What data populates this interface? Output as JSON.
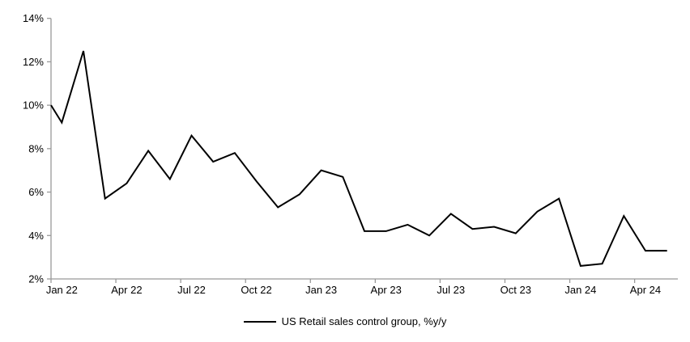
{
  "chart_data": {
    "type": "line",
    "title": "",
    "legend": "US Retail sales control group, %y/y",
    "legend_position": "bottom-center",
    "grid": false,
    "line_color": "#000000",
    "line_width": 2,
    "axis_color": "#999999",
    "text_color": "#000000",
    "background_color": "#ffffff",
    "ylim": [
      2,
      14
    ],
    "ytick_step": 2,
    "ytick_labels": [
      "2%",
      "4%",
      "6%",
      "8%",
      "10%",
      "12%",
      "14%"
    ],
    "x_label_interval": 3,
    "x_labels_shown": [
      "Jan 22",
      "Apr 22",
      "Jul 22",
      "Oct 22",
      "Jan 23",
      "Apr 23",
      "Jul 23",
      "Oct 23",
      "Jan 24",
      "Apr 24"
    ],
    "categories": [
      "Jan 22",
      "Feb 22",
      "Mar 22",
      "Apr 22",
      "May 22",
      "Jun 22",
      "Jul 22",
      "Aug 22",
      "Sep 22",
      "Oct 22",
      "Nov 22",
      "Dec 22",
      "Jan 23",
      "Feb 23",
      "Mar 23",
      "Apr 23",
      "May 23",
      "Jun 23",
      "Jul 23",
      "Aug 23",
      "Sep 23",
      "Oct 23",
      "Nov 23",
      "Dec 23",
      "Jan 24",
      "Feb 24",
      "Mar 24",
      "Apr 24",
      "May 24"
    ],
    "values": [
      9.2,
      12.5,
      5.7,
      6.4,
      7.9,
      6.6,
      8.6,
      7.4,
      7.8,
      6.5,
      5.3,
      5.9,
      7.0,
      6.7,
      4.2,
      4.2,
      4.5,
      4.0,
      5.0,
      4.3,
      4.4,
      4.1,
      5.1,
      5.7,
      2.6,
      2.7,
      4.9,
      3.3,
      3.3
    ],
    "edge_entry_value": 10.0
  }
}
